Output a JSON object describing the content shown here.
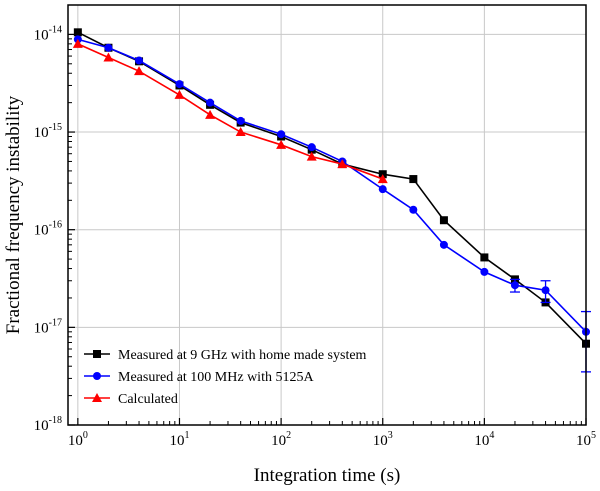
{
  "chart_data": {
    "type": "line",
    "xlabel": "Integration time (s)",
    "ylabel": "Fractional frequency instability",
    "x_scale": "log",
    "y_scale": "log",
    "xlim": [
      0.8,
      100000
    ],
    "ylim": [
      1e-18,
      2e-14
    ],
    "grid": true,
    "legend_position": "bottom-left",
    "x_ticks": [
      {
        "base": "10",
        "exp": "0",
        "value": 1
      },
      {
        "base": "10",
        "exp": "1",
        "value": 10
      },
      {
        "base": "10",
        "exp": "2",
        "value": 100
      },
      {
        "base": "10",
        "exp": "3",
        "value": 1000
      },
      {
        "base": "10",
        "exp": "4",
        "value": 10000
      },
      {
        "base": "10",
        "exp": "5",
        "value": 100000
      }
    ],
    "y_ticks": [
      {
        "base": "10",
        "exp": "-14",
        "value": 1e-14
      },
      {
        "base": "10",
        "exp": "-15",
        "value": 1e-15
      },
      {
        "base": "10",
        "exp": "-16",
        "value": 1e-16
      },
      {
        "base": "10",
        "exp": "-17",
        "value": 1e-17
      },
      {
        "base": "10",
        "exp": "-18",
        "value": 1e-18
      }
    ],
    "series": [
      {
        "name": "Measured at 9 GHz with home made system",
        "color": "#000000",
        "marker": "square",
        "x": [
          1,
          2,
          4,
          10,
          20,
          40,
          100,
          200,
          400,
          1000,
          2000,
          4000,
          10000,
          20000,
          40000,
          100000
        ],
        "y": [
          1.05e-14,
          7.3e-15,
          5.3e-15,
          3e-15,
          1.9e-15,
          1.25e-15,
          9e-16,
          6.6e-16,
          4.7e-16,
          3.7e-16,
          3.3e-16,
          1.25e-16,
          5.2e-17,
          3.1e-17,
          1.8e-17,
          6.8e-18
        ],
        "err": [
          0,
          0,
          0,
          0,
          0,
          0,
          0,
          0,
          0,
          0,
          0,
          0,
          0,
          0,
          0,
          0
        ]
      },
      {
        "name": "Measured at 100 MHz with 5125A",
        "color": "#0000ff",
        "marker": "circle",
        "x": [
          1,
          2,
          4,
          10,
          20,
          40,
          100,
          200,
          400,
          1000,
          2000,
          4000,
          10000,
          20000,
          40000,
          100000
        ],
        "y": [
          8.9e-15,
          7.3e-15,
          5.4e-15,
          3.1e-15,
          2e-15,
          1.3e-15,
          9.5e-16,
          7e-16,
          5e-16,
          2.6e-16,
          1.6e-16,
          7e-17,
          3.7e-17,
          2.7e-17,
          2.4e-17,
          9e-18
        ],
        "err": [
          0,
          0,
          0,
          0,
          0,
          0,
          0,
          0,
          0,
          0,
          0,
          0,
          0,
          4e-18,
          6e-18,
          5.5e-18
        ]
      },
      {
        "name": "Calculated",
        "color": "#ff0000",
        "marker": "triangle",
        "x": [
          1,
          2,
          4,
          10,
          20,
          40,
          100,
          200,
          400,
          1000
        ],
        "y": [
          8e-15,
          5.8e-15,
          4.2e-15,
          2.4e-15,
          1.5e-15,
          1e-15,
          7.4e-16,
          5.6e-16,
          4.7e-16,
          3.3e-16
        ],
        "err": [
          0,
          0,
          0,
          0,
          0,
          0,
          0,
          0,
          0,
          0
        ]
      }
    ]
  }
}
